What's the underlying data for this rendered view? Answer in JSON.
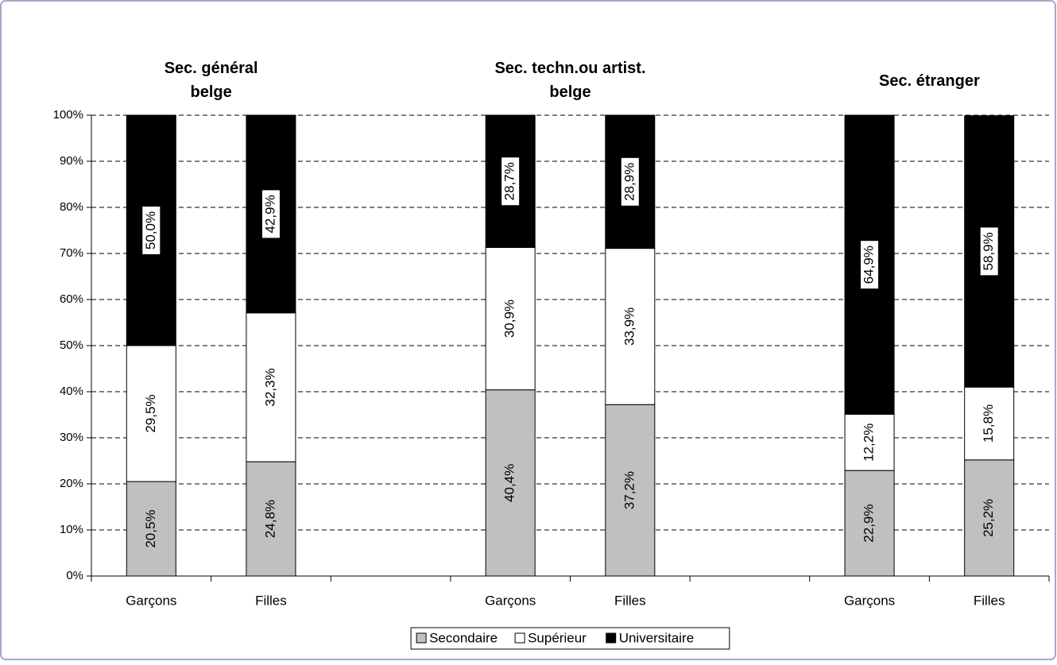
{
  "chart_data": {
    "type": "stacked_bar",
    "group_labels": [
      [
        "Sec. général",
        "belge"
      ],
      [
        "Sec. techn.ou artist.",
        "belge"
      ],
      [
        "Sec. étranger"
      ]
    ],
    "categories": [
      "Garçons",
      "Filles",
      null,
      "Garçons",
      "Filles",
      null,
      "Garçons",
      "Filles"
    ],
    "series": [
      {
        "name": "Secondaire",
        "color": "#c0c0c0",
        "values": [
          20.5,
          24.8,
          null,
          40.4,
          37.2,
          null,
          22.9,
          25.2
        ],
        "value_labels": [
          "20,5%",
          "24,8%",
          null,
          "40,4%",
          "37,2%",
          null,
          "22,9%",
          "25,2%"
        ]
      },
      {
        "name": "Supérieur",
        "color": "#ffffff",
        "values": [
          29.5,
          32.3,
          null,
          30.9,
          33.9,
          null,
          12.2,
          15.8
        ],
        "value_labels": [
          "29,5%",
          "32,3%",
          null,
          "30,9%",
          "33,9%",
          null,
          "12,2%",
          "15,8%"
        ]
      },
      {
        "name": "Universitaire",
        "color": "#000000",
        "values": [
          50.0,
          42.9,
          null,
          28.7,
          28.9,
          null,
          64.9,
          58.9
        ],
        "value_labels": [
          "50,0%",
          "42,9%",
          null,
          "28,7%",
          "28,9%",
          null,
          "64,9%",
          "58,9%"
        ]
      }
    ],
    "ylim": [
      0,
      100
    ],
    "yticks": [
      {
        "value": 0,
        "label": "0%"
      },
      {
        "value": 10,
        "label": "10%"
      },
      {
        "value": 20,
        "label": "20%"
      },
      {
        "value": 30,
        "label": "30%"
      },
      {
        "value": 40,
        "label": "40%"
      },
      {
        "value": 50,
        "label": "50%"
      },
      {
        "value": 60,
        "label": "60%"
      },
      {
        "value": 70,
        "label": "70%"
      },
      {
        "value": 80,
        "label": "80%"
      },
      {
        "value": 90,
        "label": "90%"
      },
      {
        "value": 100,
        "label": "100%"
      }
    ],
    "grid": true,
    "legend": "bottom"
  }
}
